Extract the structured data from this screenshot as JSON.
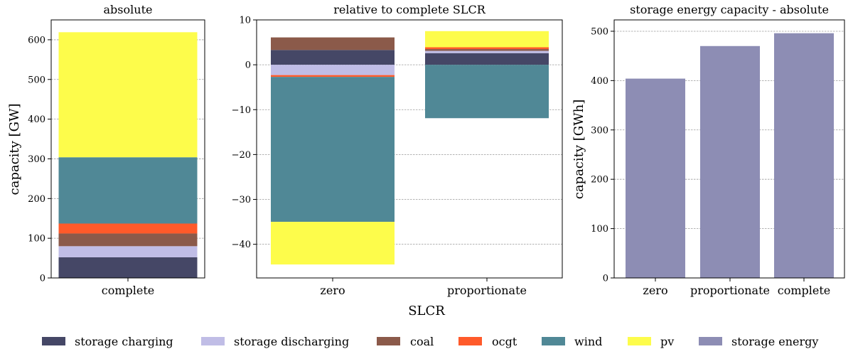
{
  "colors": {
    "storage charging": "#454766",
    "storage discharging": "#c0bde6",
    "coal": "#8b5a4a",
    "ocgt": "#ff5a2a",
    "wind": "#508896",
    "pv": "#fdfc4b",
    "storage energy": "#8d8db4"
  },
  "xlabel_shared": "SLCR",
  "legend": [
    "storage charging",
    "storage discharging",
    "coal",
    "ocgt",
    "wind",
    "pv",
    "storage energy"
  ],
  "chart_data": [
    {
      "type": "bar",
      "stacked": true,
      "title": "absolute",
      "ylabel": "capacity [GW]",
      "categories": [
        "complete"
      ],
      "ylim": [
        0,
        650
      ],
      "yticks": [
        0,
        100,
        200,
        300,
        400,
        500,
        600
      ],
      "ytick_labels": [
        "0",
        "100",
        "200",
        "300",
        "400",
        "500",
        "600"
      ],
      "grid": true,
      "series": [
        {
          "name": "storage charging",
          "values": [
            52
          ]
        },
        {
          "name": "storage discharging",
          "values": [
            28
          ]
        },
        {
          "name": "coal",
          "values": [
            32
          ]
        },
        {
          "name": "ocgt",
          "values": [
            25
          ]
        },
        {
          "name": "wind",
          "values": [
            167
          ]
        },
        {
          "name": "pv",
          "values": [
            315
          ]
        }
      ]
    },
    {
      "type": "bar",
      "stacked": true,
      "title": "relative to complete SLCR",
      "ylabel": "",
      "categories": [
        "zero",
        "proportionate"
      ],
      "ylim": [
        -47.5,
        10
      ],
      "yticks": [
        10,
        0,
        -10,
        -20,
        -30,
        -40
      ],
      "ytick_labels": [
        "10",
        "0",
        "−10",
        "−20",
        "−30",
        "−40"
      ],
      "grid": true,
      "series": [
        {
          "name": "storage charging",
          "values": [
            3.3,
            2.6
          ]
        },
        {
          "name": "storage discharging",
          "values": [
            -2.3,
            0.5
          ]
        },
        {
          "name": "coal",
          "values": [
            2.8,
            0.4
          ]
        },
        {
          "name": "ocgt",
          "values": [
            -0.4,
            0.4
          ]
        },
        {
          "name": "wind",
          "values": [
            -32.3,
            -11.9
          ]
        },
        {
          "name": "pv",
          "values": [
            -9.5,
            3.6
          ]
        }
      ]
    },
    {
      "type": "bar",
      "stacked": false,
      "title": "storage energy capacity - absolute",
      "ylabel": "capacity [GWh]",
      "categories": [
        "zero",
        "proportionate",
        "complete"
      ],
      "ylim": [
        0,
        523
      ],
      "yticks": [
        0,
        100,
        200,
        300,
        400,
        500
      ],
      "ytick_labels": [
        "0",
        "100",
        "200",
        "300",
        "400",
        "500"
      ],
      "grid": true,
      "series": [
        {
          "name": "storage energy",
          "values": [
            404,
            470,
            496
          ]
        }
      ]
    }
  ]
}
